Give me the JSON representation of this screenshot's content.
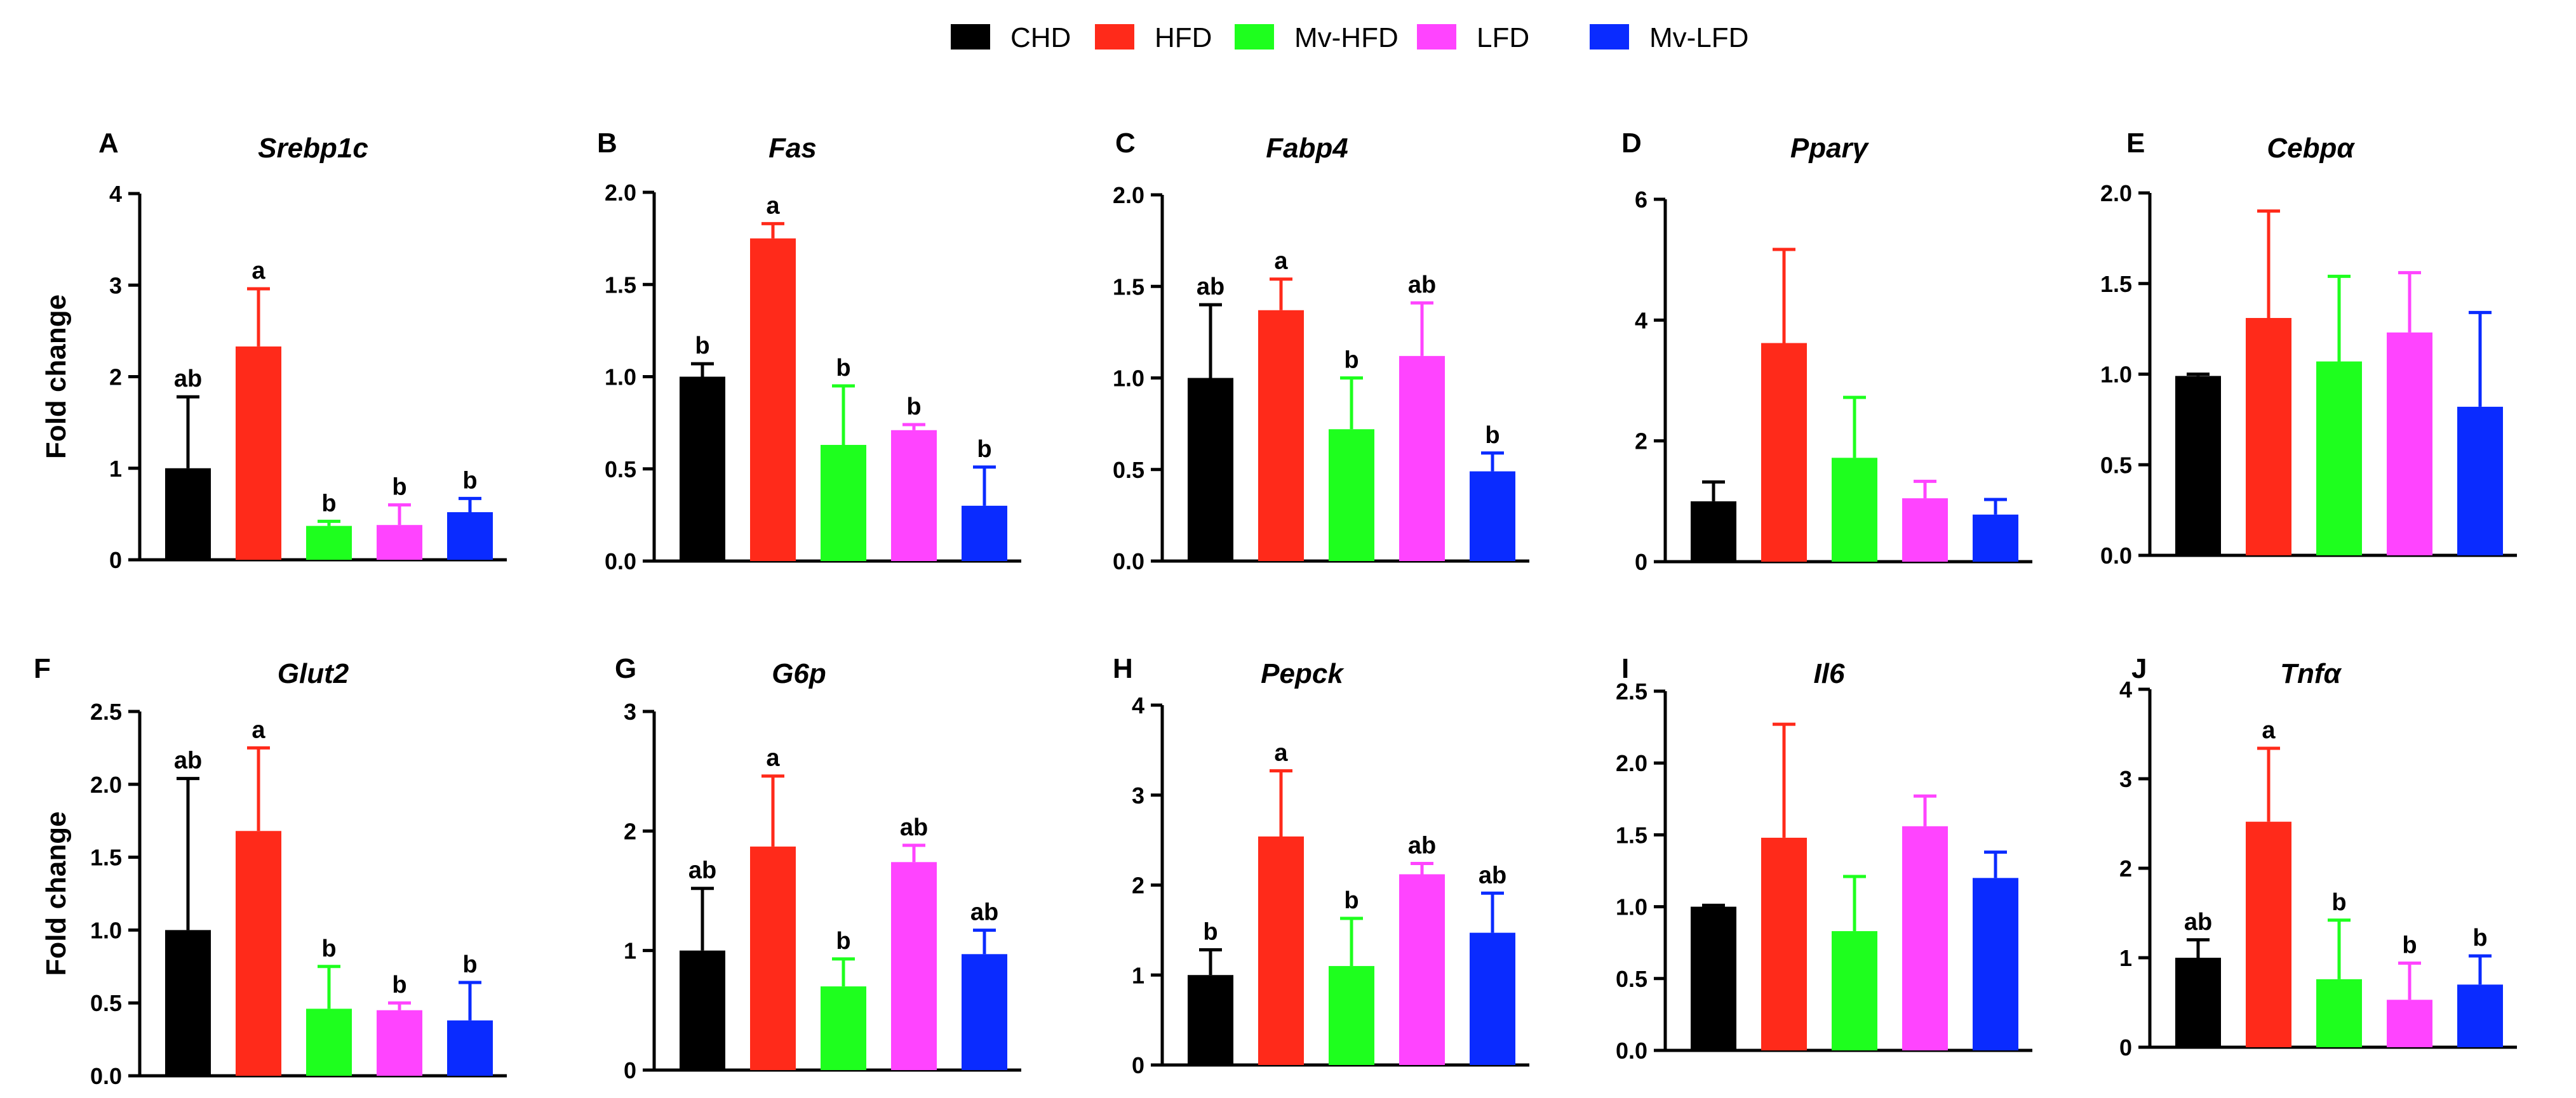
{
  "legend": [
    {
      "label": "CHD",
      "color": "#000000"
    },
    {
      "label": "HFD",
      "color": "#ff2a1a"
    },
    {
      "label": "Mv-HFD",
      "color": "#1eff1e"
    },
    {
      "label": "LFD",
      "color": "#ff44ff"
    },
    {
      "label": "Mv-LFD",
      "color": "#0a2bff"
    }
  ],
  "ylabel": "Fold change",
  "chart_data": [
    {
      "type": "bar",
      "letter": "A",
      "title": "Srebp1c",
      "categories": [
        "CHD",
        "HFD",
        "Mv-HFD",
        "LFD",
        "Mv-LFD"
      ],
      "values": [
        1.0,
        2.33,
        0.37,
        0.38,
        0.52
      ],
      "errors": [
        0.78,
        0.63,
        0.05,
        0.22,
        0.15
      ],
      "labels": [
        "ab",
        "a",
        "b",
        "b",
        "b"
      ],
      "ylim": [
        0,
        4
      ],
      "ticks": [
        "0",
        "1",
        "2",
        "3",
        "4"
      ]
    },
    {
      "type": "bar",
      "letter": "B",
      "title": "Fas",
      "categories": [
        "CHD",
        "HFD",
        "Mv-HFD",
        "LFD",
        "Mv-LFD"
      ],
      "values": [
        1.0,
        1.75,
        0.63,
        0.71,
        0.3
      ],
      "errors": [
        0.07,
        0.08,
        0.32,
        0.03,
        0.21
      ],
      "labels": [
        "b",
        "a",
        "b",
        "b",
        "b"
      ],
      "ylim": [
        0,
        2
      ],
      "ticks": [
        "0.0",
        "0.5",
        "1.0",
        "1.5",
        "2.0"
      ]
    },
    {
      "type": "bar",
      "letter": "C",
      "title": "Fabp4",
      "categories": [
        "CHD",
        "HFD",
        "Mv-HFD",
        "LFD",
        "Mv-LFD"
      ],
      "values": [
        1.0,
        1.37,
        0.72,
        1.12,
        0.49
      ],
      "errors": [
        0.4,
        0.17,
        0.28,
        0.29,
        0.1
      ],
      "labels": [
        "ab",
        "a",
        "b",
        "ab",
        "b"
      ],
      "ylim": [
        0,
        2
      ],
      "ticks": [
        "0.0",
        "0.5",
        "1.0",
        "1.5",
        "2.0"
      ]
    },
    {
      "type": "bar",
      "letter": "D",
      "title": "Pparγ",
      "categories": [
        "CHD",
        "HFD",
        "Mv-HFD",
        "LFD",
        "Mv-LFD"
      ],
      "values": [
        1.0,
        3.62,
        1.72,
        1.05,
        0.78
      ],
      "errors": [
        0.32,
        1.55,
        1.0,
        0.28,
        0.25
      ],
      "labels": [
        "",
        "",
        "",
        "",
        ""
      ],
      "ylim": [
        0,
        6
      ],
      "ticks": [
        "0",
        "2",
        "4",
        "6"
      ]
    },
    {
      "type": "bar",
      "letter": "E",
      "title": "Cebpα",
      "categories": [
        "CHD",
        "HFD",
        "Mv-HFD",
        "LFD",
        "Mv-LFD"
      ],
      "values": [
        0.99,
        1.31,
        1.07,
        1.23,
        0.82
      ],
      "errors": [
        0.01,
        0.59,
        0.47,
        0.33,
        0.52
      ],
      "labels": [
        "",
        "",
        "",
        "",
        ""
      ],
      "ylim": [
        0,
        2
      ],
      "ticks": [
        "0.0",
        "0.5",
        "1.0",
        "1.5",
        "2.0"
      ]
    },
    {
      "type": "bar",
      "letter": "F",
      "title": "Glut2",
      "categories": [
        "CHD",
        "HFD",
        "Mv-HFD",
        "LFD",
        "Mv-LFD"
      ],
      "values": [
        1.0,
        1.68,
        0.46,
        0.45,
        0.38
      ],
      "errors": [
        1.04,
        0.57,
        0.29,
        0.05,
        0.26
      ],
      "labels": [
        "ab",
        "a",
        "b",
        "b",
        "b"
      ],
      "ylim": [
        0,
        2.5
      ],
      "ticks": [
        "0.0",
        "0.5",
        "1.0",
        "1.5",
        "2.0",
        "2.5"
      ]
    },
    {
      "type": "bar",
      "letter": "G",
      "title": "G6p",
      "categories": [
        "CHD",
        "HFD",
        "Mv-HFD",
        "LFD",
        "Mv-LFD"
      ],
      "values": [
        1.0,
        1.87,
        0.7,
        1.74,
        0.97
      ],
      "errors": [
        0.52,
        0.59,
        0.23,
        0.14,
        0.2
      ],
      "labels": [
        "ab",
        "a",
        "b",
        "ab",
        "ab"
      ],
      "ylim": [
        0,
        3
      ],
      "ticks": [
        "0",
        "1",
        "2",
        "3"
      ]
    },
    {
      "type": "bar",
      "letter": "H",
      "title": "Pepck",
      "categories": [
        "CHD",
        "HFD",
        "Mv-HFD",
        "LFD",
        "Mv-LFD"
      ],
      "values": [
        1.0,
        2.54,
        1.1,
        2.12,
        1.47
      ],
      "errors": [
        0.28,
        0.73,
        0.53,
        0.12,
        0.44
      ],
      "labels": [
        "b",
        "a",
        "b",
        "ab",
        "ab"
      ],
      "ylim": [
        0,
        4
      ],
      "ticks": [
        "0",
        "1",
        "2",
        "3",
        "4"
      ]
    },
    {
      "type": "bar",
      "letter": "I",
      "title": "Il6",
      "categories": [
        "CHD",
        "HFD",
        "Mv-HFD",
        "LFD",
        "Mv-LFD"
      ],
      "values": [
        1.0,
        1.48,
        0.83,
        1.56,
        1.2
      ],
      "errors": [
        0.01,
        0.79,
        0.38,
        0.21,
        0.18
      ],
      "labels": [
        "",
        "",
        "",
        "",
        ""
      ],
      "ylim": [
        0,
        2.5
      ],
      "ticks": [
        "0.0",
        "0.5",
        "1.0",
        "1.5",
        "2.0",
        "2.5"
      ]
    },
    {
      "type": "bar",
      "letter": "J",
      "title": "Tnfα",
      "categories": [
        "CHD",
        "HFD",
        "Mv-HFD",
        "LFD",
        "Mv-LFD"
      ],
      "values": [
        1.0,
        2.52,
        0.76,
        0.53,
        0.7
      ],
      "errors": [
        0.2,
        0.82,
        0.66,
        0.41,
        0.32
      ],
      "labels": [
        "ab",
        "a",
        "b",
        "b",
        "b"
      ],
      "ylim": [
        0,
        4
      ],
      "ticks": [
        "0",
        "1",
        "2",
        "3",
        "4"
      ]
    }
  ]
}
